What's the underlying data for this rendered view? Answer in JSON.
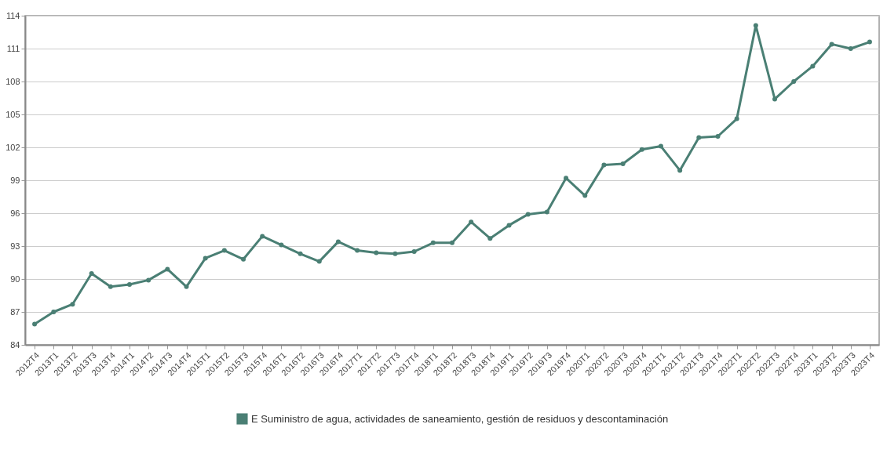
{
  "chart_data": {
    "type": "line",
    "categories": [
      "2012T4",
      "2013T1",
      "2013T2",
      "2013T3",
      "2013T4",
      "2014T1",
      "2014T2",
      "2014T3",
      "2014T4",
      "2015T1",
      "2015T2",
      "2015T3",
      "2015T4",
      "2016T1",
      "2016T2",
      "2016T3",
      "2016T4",
      "2017T1",
      "2017T2",
      "2017T3",
      "2017T4",
      "2018T1",
      "2018T2",
      "2018T3",
      "2018T4",
      "2019T1",
      "2019T2",
      "2019T3",
      "2019T4",
      "2020T1",
      "2020T2",
      "2020T3",
      "2020T4",
      "2021T1",
      "2021T2",
      "2021T3",
      "2021T4",
      "2022T1",
      "2022T2",
      "2022T3",
      "2022T4",
      "2023T1",
      "2023T2",
      "2023T3",
      "2023T4"
    ],
    "series": [
      {
        "name": "E Suministro de agua, actividades de saneamiento, gestión de residuos y descontaminación",
        "color": "#4a7f74",
        "values": [
          85.9,
          87.0,
          87.7,
          90.5,
          89.3,
          89.5,
          89.9,
          90.9,
          89.3,
          91.9,
          92.6,
          91.8,
          93.9,
          93.1,
          92.3,
          91.6,
          93.4,
          92.6,
          92.4,
          92.3,
          92.5,
          93.3,
          93.3,
          95.2,
          93.7,
          94.9,
          95.9,
          96.1,
          99.2,
          97.6,
          100.4,
          100.5,
          101.8,
          102.1,
          99.9,
          102.9,
          103.0,
          104.6,
          113.1,
          106.4,
          108.0,
          109.4,
          111.4,
          111.0,
          111.6
        ]
      }
    ],
    "ylim": [
      84,
      114
    ],
    "yticks": [
      84,
      87,
      90,
      93,
      96,
      99,
      102,
      105,
      108,
      111,
      114
    ],
    "grid": "y",
    "legend": "bottom",
    "marker": "circle",
    "line_style": "solid"
  }
}
